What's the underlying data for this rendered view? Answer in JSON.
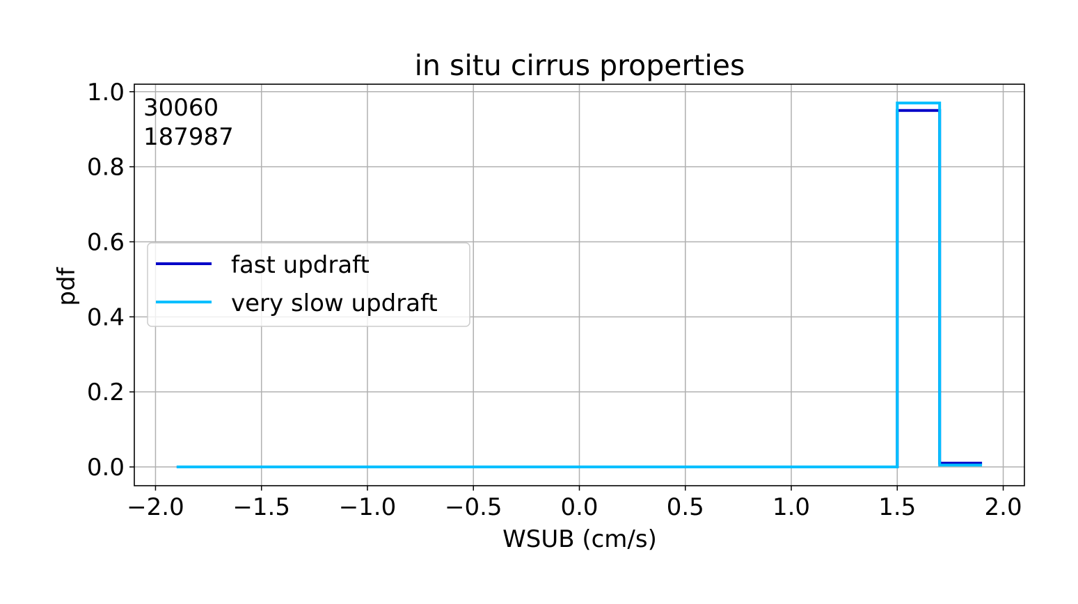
{
  "chart_data": {
    "type": "line",
    "title": "in situ cirrus properties",
    "xlabel": "WSUB (cm/s)",
    "ylabel": "pdf",
    "xlim": [
      -2.1,
      2.1
    ],
    "ylim": [
      -0.05,
      1.02
    ],
    "x_ticks": [
      -2.0,
      -1.5,
      -1.0,
      -0.5,
      0.0,
      0.5,
      1.0,
      1.5,
      2.0
    ],
    "x_tick_labels": [
      "−2.0",
      "−1.5",
      "−1.0",
      "−0.5",
      "0.0",
      "0.5",
      "1.0",
      "1.5",
      "2.0"
    ],
    "y_ticks": [
      0.0,
      0.2,
      0.4,
      0.6,
      0.8,
      1.0
    ],
    "y_tick_labels": [
      "0.0",
      "0.2",
      "0.4",
      "0.6",
      "0.8",
      "1.0"
    ],
    "grid": true,
    "legend_position": "center-left",
    "annotations": [
      "30060",
      "187987"
    ],
    "series": [
      {
        "name": "fast updraft",
        "color": "#0000c8",
        "x": [
          -1.9,
          1.5,
          1.5,
          1.7,
          1.7,
          1.9
        ],
        "y": [
          0.0,
          0.0,
          0.95,
          0.95,
          0.01,
          0.01
        ]
      },
      {
        "name": "very slow updraft",
        "color": "#00bfff",
        "x": [
          -1.9,
          1.5,
          1.5,
          1.7,
          1.7,
          1.9
        ],
        "y": [
          0.0,
          0.0,
          0.97,
          0.97,
          0.005,
          0.005
        ]
      }
    ]
  }
}
